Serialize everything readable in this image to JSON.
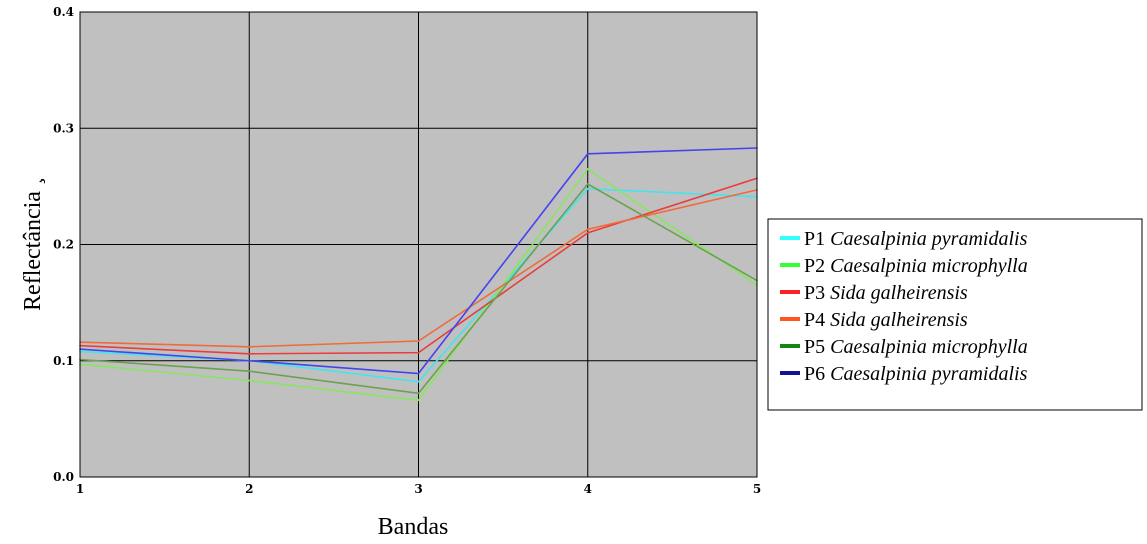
{
  "chart_data": {
    "type": "line",
    "xlabel": "Bandas",
    "ylabel": "Reflectância ¸",
    "x": [
      1,
      2,
      3,
      4,
      5
    ],
    "x_tick_labels": [
      "1",
      "2",
      "3",
      "4",
      "5"
    ],
    "ylim": [
      0.0,
      0.4
    ],
    "y_tick_labels": [
      "0.0",
      "0.1",
      "0.2",
      "0.3",
      "0.4"
    ],
    "y_ticks": [
      0.0,
      0.1,
      0.2,
      0.3,
      0.4
    ],
    "grid": true,
    "plot_background": "#c0c0c0",
    "legend_position": "right",
    "series": [
      {
        "id": "P1",
        "species": "Caesalpinia pyramidalis",
        "color": "#44e4ee",
        "values": [
          0.108,
          0.1,
          0.082,
          0.248,
          0.241
        ]
      },
      {
        "id": "P2",
        "species": "Caesalpinia microphylla",
        "color": "#88e65e",
        "values": [
          0.097,
          0.083,
          0.066,
          0.265,
          0.165
        ]
      },
      {
        "id": "P3",
        "species": "Sida galheirensis",
        "color": "#ee3a3a",
        "values": [
          0.113,
          0.106,
          0.107,
          0.21,
          0.257
        ]
      },
      {
        "id": "P4",
        "species": "Sida galheirensis",
        "color": "#f06a3a",
        "values": [
          0.116,
          0.112,
          0.117,
          0.213,
          0.247
        ]
      },
      {
        "id": "P5",
        "species": "Caesalpinia microphylla",
        "color": "#6aa24e",
        "values": [
          0.101,
          0.091,
          0.072,
          0.252,
          0.169
        ]
      },
      {
        "id": "P6",
        "species": "Caesalpinia pyramidalis",
        "color": "#4444ee",
        "values": [
          0.11,
          0.1,
          0.089,
          0.278,
          0.283
        ]
      }
    ]
  },
  "legend": {
    "items": [
      {
        "id": "P1",
        "species": "Caesalpinia pyramidalis",
        "color": "#33ffff"
      },
      {
        "id": "P2",
        "species": "Caesalpinia microphylla",
        "color": "#33ff33"
      },
      {
        "id": "P3",
        "species": "Sida galheirensis",
        "color": "#ff2222"
      },
      {
        "id": "P4",
        "species": "Sida galheirensis",
        "color": "#ff5522"
      },
      {
        "id": "P5",
        "species": "Caesalpinia microphylla",
        "color": "#118811"
      },
      {
        "id": "P6",
        "species": "Caesalpinia pyramidalis",
        "color": "#111199"
      }
    ]
  }
}
